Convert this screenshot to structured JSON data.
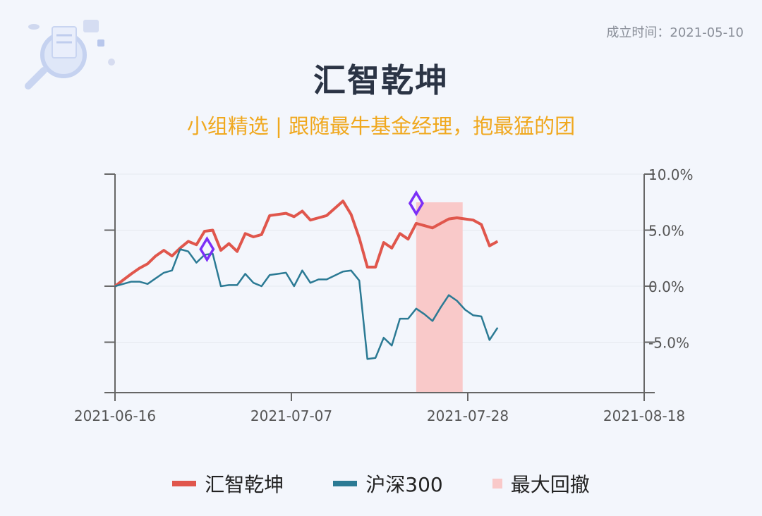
{
  "header": {
    "established_label": "成立时间：2021-05-10",
    "title": "汇智乾坤",
    "subtitle": "小组精选 | 跟随最牛基金经理，抱最猛的团"
  },
  "colors": {
    "fund": "#e0564c",
    "index": "#2b7a94",
    "drawdown": "#f9c9c9",
    "marker": "#7b2ff7",
    "axis": "#666666"
  },
  "chart_data": {
    "type": "line",
    "x_ticks": [
      "2021-06-16",
      "2021-07-07",
      "2021-07-28",
      "2021-08-18"
    ],
    "y_ticks": [
      "10.0%",
      "5.0%",
      "0.0%",
      "-5.0%"
    ],
    "y_tick_values": [
      10,
      5,
      0,
      -5
    ],
    "ylim": [
      -9.5,
      10
    ],
    "x": [
      0,
      2,
      3,
      4,
      5,
      6,
      7,
      8,
      9,
      10,
      11,
      12,
      13,
      14,
      15,
      16,
      17,
      18,
      19,
      21,
      22,
      23,
      24,
      25,
      26,
      28,
      29,
      30,
      31,
      32,
      33,
      34,
      35,
      36,
      37,
      38,
      39,
      40,
      41,
      42,
      43,
      44,
      45,
      46,
      47,
      48,
      49,
      50,
      51,
      52,
      53,
      54,
      55,
      56,
      57,
      58,
      59,
      60,
      61,
      62,
      63,
      64,
      65
    ],
    "series": [
      {
        "name": "汇智乾坤",
        "values": [
          0,
          1.1,
          1.6,
          2.0,
          2.7,
          3.2,
          2.7,
          3.4,
          4.0,
          3.7,
          4.9,
          5.0,
          3.2,
          3.8,
          3.1,
          4.7,
          4.4,
          4.6,
          6.3,
          6.5,
          6.2,
          6.7,
          5.9,
          6.1,
          6.3,
          7.6,
          6.4,
          4.3,
          1.7,
          1.7,
          3.9,
          3.4,
          4.7,
          4.2,
          5.6,
          5.4,
          5.2,
          5.6,
          6.0,
          6.1,
          6.0,
          5.9,
          5.5,
          3.6,
          4.0,
          4.0,
          4.0,
          4.0,
          4.0,
          4.0,
          4.0,
          4.0,
          4.0,
          4.0,
          4.0,
          4.0,
          4.0,
          4.0,
          4.0,
          4.0,
          4.0,
          4.0,
          4.0
        ]
      },
      {
        "name": "沪深300",
        "values": [
          0,
          0.4,
          0.4,
          0.2,
          0.7,
          1.2,
          1.4,
          3.3,
          3.1,
          2.1,
          2.8,
          2.9,
          0.0,
          0.1,
          0.1,
          1.1,
          0.3,
          0.0,
          1.0,
          1.2,
          0.0,
          1.4,
          0.3,
          0.6,
          0.6,
          1.3,
          1.4,
          0.5,
          -6.5,
          -6.4,
          -4.6,
          -5.3,
          -2.9,
          -2.9,
          -2.0,
          -2.5,
          -3.1,
          -1.9,
          -0.8,
          -1.3,
          -2.1,
          -2.6,
          -2.7,
          -4.8,
          -3.7,
          -3.7,
          -3.7,
          -3.7,
          -3.7,
          -3.7,
          -3.7,
          -3.7,
          -3.7,
          -3.7,
          -3.7,
          -3.7,
          -3.7,
          -3.7,
          -3.7,
          -3.7,
          -3.7,
          -3.7,
          -3.7
        ]
      }
    ],
    "drawdown_range": [
      37,
      42.7
    ],
    "markers": [
      {
        "x": 11.3,
        "y": 3.3
      },
      {
        "x": 37,
        "y": 7.4
      }
    ],
    "legend": [
      {
        "name": "汇智乾坤",
        "color": "#e0564c",
        "kind": "line"
      },
      {
        "name": "沪深300",
        "color": "#2b7a94",
        "kind": "line"
      },
      {
        "name": "最大回撤",
        "color": "#f9c9c9",
        "kind": "area"
      }
    ],
    "legend_position": "bottom-center",
    "grid": "horizontal"
  }
}
